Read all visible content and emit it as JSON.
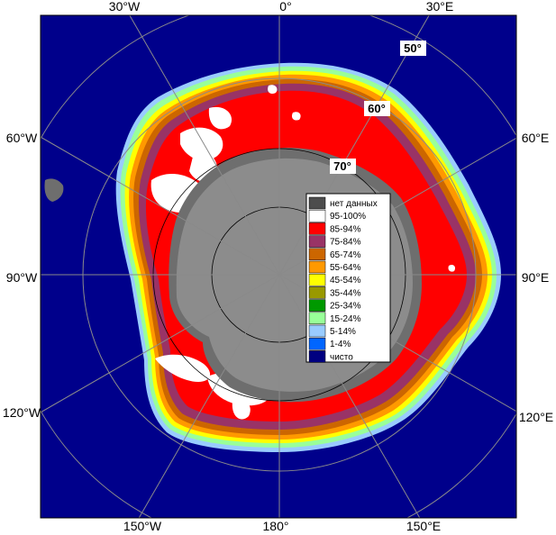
{
  "map": {
    "longitude_labels": {
      "top_left": "30°W",
      "top_center": "0°",
      "top_right": "30°E",
      "left_upper": "60°W",
      "left_middle": "90°W",
      "left_lower": "120°W",
      "right_upper": "60°E",
      "right_middle": "90°E",
      "right_lower": "120°E",
      "bottom_left": "150°W",
      "bottom_center": "180°",
      "bottom_right": "150°E"
    },
    "latitude_labels": [
      "50°",
      "60°",
      "70°"
    ]
  },
  "colors": {
    "ocean": "#00008b",
    "grid": "#8a8a8a",
    "land": "#8c8c8c",
    "ice_shelf": "#6e6e6e"
  },
  "legend": {
    "items": [
      {
        "label": "нет данных",
        "color": "#4d4d4d"
      },
      {
        "label": "95-100%",
        "color": "#ffffff"
      },
      {
        "label": "85-94%",
        "color": "#ff0000"
      },
      {
        "label": "75-84%",
        "color": "#993366"
      },
      {
        "label": "65-74%",
        "color": "#cc6600"
      },
      {
        "label": "55-64%",
        "color": "#ff9900"
      },
      {
        "label": "45-54%",
        "color": "#ffff00"
      },
      {
        "label": "35-44%",
        "color": "#999900"
      },
      {
        "label": "25-34%",
        "color": "#009900"
      },
      {
        "label": "15-24%",
        "color": "#99ff99"
      },
      {
        "label": "5-14%",
        "color": "#99ccff"
      },
      {
        "label": "1-4%",
        "color": "#0066ff"
      },
      {
        "label": "чисто",
        "color": "#000080"
      }
    ]
  }
}
